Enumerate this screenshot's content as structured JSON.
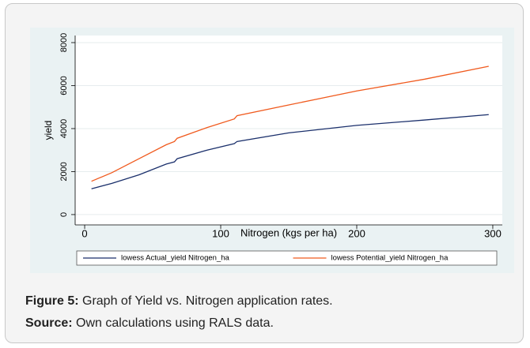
{
  "chart_data": {
    "type": "line",
    "x": [
      5,
      20,
      40,
      60,
      66,
      68,
      90,
      110,
      112,
      150,
      200,
      250,
      297
    ],
    "series": [
      {
        "name": "lowess Actual_yield Nitrogen_ha",
        "color": "#1a2f6b",
        "values": [
          1200,
          1450,
          1850,
          2350,
          2450,
          2600,
          3000,
          3300,
          3400,
          3800,
          4150,
          4400,
          4650
        ]
      },
      {
        "name": "lowess Potential_yield Nitrogen_ha",
        "color": "#f05a1e",
        "values": [
          1550,
          1950,
          2600,
          3250,
          3400,
          3550,
          4050,
          4450,
          4600,
          5100,
          5750,
          6300,
          6900
        ]
      }
    ],
    "xlabel": "Nitrogen (kgs  per ha)",
    "ylabel": "yield",
    "xlim": [
      -7,
      307
    ],
    "xticks": [
      0,
      100,
      200,
      300
    ],
    "ylim": [
      -480,
      8330
    ],
    "yticks": [
      0,
      2000,
      4000,
      6000,
      8000
    ],
    "grid": true,
    "legend": "bottom"
  },
  "caption": {
    "label": "Figure 5:",
    "text": " Graph of Yield vs. Nitrogen application rates."
  },
  "source": {
    "label": "Source:",
    "text": " Own calculations using RALS data."
  }
}
